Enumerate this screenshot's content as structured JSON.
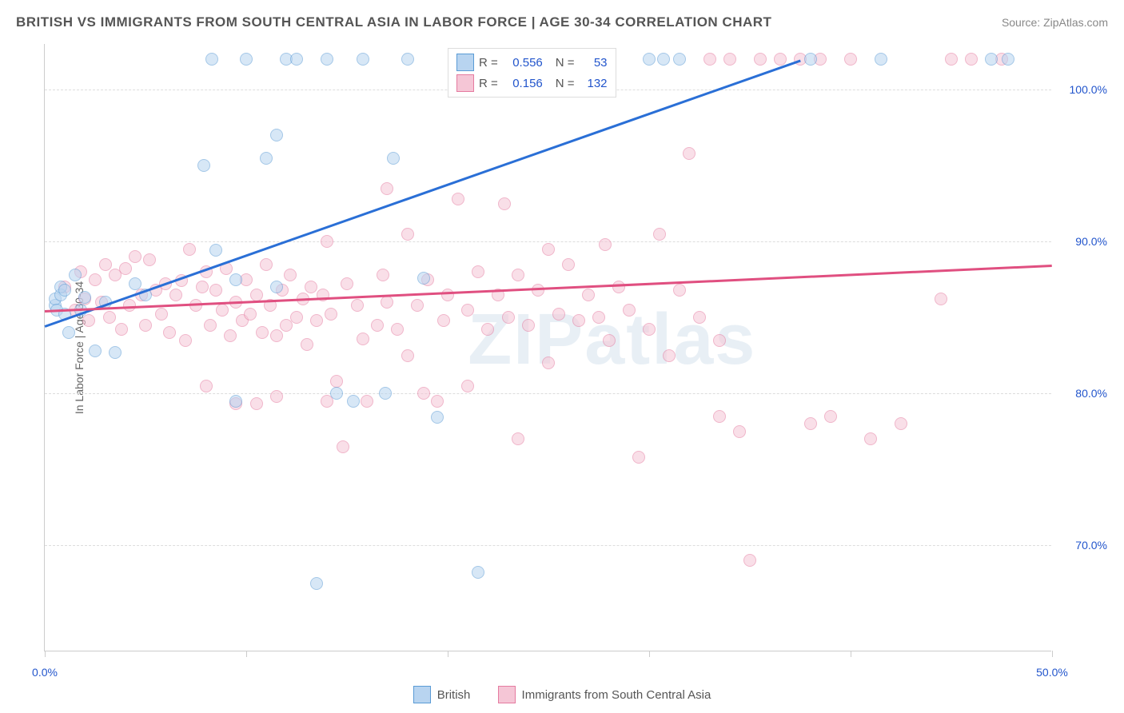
{
  "title": "BRITISH VS IMMIGRANTS FROM SOUTH CENTRAL ASIA IN LABOR FORCE | AGE 30-34 CORRELATION CHART",
  "source": "Source: ZipAtlas.com",
  "watermark": "ZIPatlas",
  "y_axis_label": "In Labor Force | Age 30-34",
  "chart": {
    "type": "scatter",
    "xlim": [
      0,
      50
    ],
    "ylim": [
      63,
      103
    ],
    "x_ticks": [
      0,
      10,
      20,
      30,
      40,
      50
    ],
    "x_tick_labels": [
      "0.0%",
      "",
      "",
      "",
      "",
      "50.0%"
    ],
    "y_ticks": [
      70,
      80,
      90,
      100
    ],
    "y_tick_labels": [
      "70.0%",
      "80.0%",
      "90.0%",
      "100.0%"
    ],
    "x_label_color": "#2255cc",
    "y_label_color": "#2255cc",
    "grid_color": "#dddddd",
    "background_color": "#ffffff",
    "point_radius": 8,
    "point_opacity": 0.55,
    "series": [
      {
        "name": "British",
        "fill": "#b8d4f0",
        "stroke": "#5a9bd5",
        "line_color": "#2a6fd6",
        "R": "0.556",
        "N": "53",
        "trend": {
          "x1": 0,
          "y1": 84.5,
          "x2": 37.5,
          "y2": 102
        },
        "points": [
          [
            0.5,
            85.8
          ],
          [
            0.5,
            86.2
          ],
          [
            0.6,
            85.5
          ],
          [
            0.8,
            86.5
          ],
          [
            0.8,
            87.0
          ],
          [
            1.0,
            85.2
          ],
          [
            1.0,
            86.8
          ],
          [
            1.2,
            84.0
          ],
          [
            1.5,
            87.8
          ],
          [
            1.8,
            85.5
          ],
          [
            2.0,
            86.3
          ],
          [
            2.5,
            82.8
          ],
          [
            3.0,
            86.0
          ],
          [
            3.5,
            82.7
          ],
          [
            4.5,
            87.2
          ],
          [
            5.0,
            86.5
          ],
          [
            7.9,
            95.0
          ],
          [
            8.3,
            102
          ],
          [
            8.5,
            89.4
          ],
          [
            9.5,
            87.5
          ],
          [
            9.5,
            79.5
          ],
          [
            10.0,
            102
          ],
          [
            11.0,
            95.5
          ],
          [
            11.5,
            97.0
          ],
          [
            11.5,
            87.0
          ],
          [
            12.0,
            102
          ],
          [
            12.5,
            102
          ],
          [
            13.5,
            67.5
          ],
          [
            14.0,
            102
          ],
          [
            14.5,
            80.0
          ],
          [
            15.3,
            79.5
          ],
          [
            15.8,
            102
          ],
          [
            16.9,
            80.0
          ],
          [
            17.3,
            95.5
          ],
          [
            18.0,
            102
          ],
          [
            18.8,
            87.6
          ],
          [
            19.5,
            78.4
          ],
          [
            21.5,
            68.2
          ],
          [
            21.5,
            102
          ],
          [
            23.2,
            102
          ],
          [
            24.0,
            102
          ],
          [
            25.5,
            102
          ],
          [
            26.5,
            102
          ],
          [
            27.5,
            102
          ],
          [
            30.0,
            102
          ],
          [
            30.7,
            102
          ],
          [
            31.5,
            102
          ],
          [
            38.0,
            102
          ],
          [
            41.5,
            102
          ],
          [
            47.0,
            102
          ],
          [
            47.8,
            102
          ]
        ]
      },
      {
        "name": "Immigrants from South Central Asia",
        "fill": "#f5c6d6",
        "stroke": "#e57ba0",
        "line_color": "#e04f80",
        "R": "0.156",
        "N": "132",
        "trend": {
          "x1": 0,
          "y1": 85.5,
          "x2": 50,
          "y2": 88.5
        },
        "points": [
          [
            1.0,
            87.0
          ],
          [
            1.5,
            85.5
          ],
          [
            1.8,
            88.0
          ],
          [
            2.0,
            86.2
          ],
          [
            2.2,
            84.8
          ],
          [
            2.5,
            87.5
          ],
          [
            2.8,
            86.0
          ],
          [
            3.0,
            88.5
          ],
          [
            3.2,
            85.0
          ],
          [
            3.5,
            87.8
          ],
          [
            3.8,
            84.2
          ],
          [
            4.0,
            88.2
          ],
          [
            4.2,
            85.8
          ],
          [
            4.5,
            89.0
          ],
          [
            4.8,
            86.5
          ],
          [
            5.0,
            84.5
          ],
          [
            5.2,
            88.8
          ],
          [
            5.5,
            86.8
          ],
          [
            5.8,
            85.2
          ],
          [
            6.0,
            87.2
          ],
          [
            6.2,
            84.0
          ],
          [
            6.5,
            86.5
          ],
          [
            6.8,
            87.4
          ],
          [
            7.0,
            83.5
          ],
          [
            7.2,
            89.5
          ],
          [
            7.5,
            85.8
          ],
          [
            7.8,
            87.0
          ],
          [
            8.0,
            88.0
          ],
          [
            8.0,
            80.5
          ],
          [
            8.2,
            84.5
          ],
          [
            8.5,
            86.8
          ],
          [
            8.8,
            85.5
          ],
          [
            9.0,
            88.2
          ],
          [
            9.2,
            83.8
          ],
          [
            9.5,
            86.0
          ],
          [
            9.5,
            79.3
          ],
          [
            9.8,
            84.8
          ],
          [
            10.0,
            87.5
          ],
          [
            10.2,
            85.2
          ],
          [
            10.5,
            86.5
          ],
          [
            10.5,
            79.3
          ],
          [
            10.8,
            84.0
          ],
          [
            11.0,
            88.5
          ],
          [
            11.2,
            85.8
          ],
          [
            11.5,
            83.8
          ],
          [
            11.5,
            79.8
          ],
          [
            11.8,
            86.8
          ],
          [
            12.0,
            84.5
          ],
          [
            12.2,
            87.8
          ],
          [
            12.5,
            85.0
          ],
          [
            12.8,
            86.2
          ],
          [
            13.0,
            83.2
          ],
          [
            13.2,
            87.0
          ],
          [
            13.5,
            84.8
          ],
          [
            13.8,
            86.5
          ],
          [
            14.0,
            90.0
          ],
          [
            14.0,
            79.5
          ],
          [
            14.2,
            85.2
          ],
          [
            14.5,
            80.8
          ],
          [
            14.8,
            76.5
          ],
          [
            15.0,
            87.2
          ],
          [
            15.5,
            85.8
          ],
          [
            15.8,
            83.6
          ],
          [
            16.0,
            79.5
          ],
          [
            16.5,
            84.5
          ],
          [
            16.8,
            87.8
          ],
          [
            17.0,
            93.5
          ],
          [
            17.0,
            86.0
          ],
          [
            17.5,
            84.2
          ],
          [
            18.0,
            90.5
          ],
          [
            18.0,
            82.5
          ],
          [
            18.5,
            85.8
          ],
          [
            18.8,
            80.0
          ],
          [
            19.0,
            87.5
          ],
          [
            19.5,
            79.5
          ],
          [
            19.8,
            84.8
          ],
          [
            20.0,
            86.5
          ],
          [
            20.5,
            92.8
          ],
          [
            21.0,
            85.5
          ],
          [
            21.0,
            80.5
          ],
          [
            21.5,
            88.0
          ],
          [
            22.0,
            84.2
          ],
          [
            22.5,
            86.5
          ],
          [
            22.8,
            92.5
          ],
          [
            23.0,
            85.0
          ],
          [
            23.5,
            87.8
          ],
          [
            23.5,
            77.0
          ],
          [
            24.0,
            84.5
          ],
          [
            24.5,
            86.8
          ],
          [
            25.0,
            89.5
          ],
          [
            25.0,
            82.0
          ],
          [
            25.5,
            85.2
          ],
          [
            26.0,
            88.5
          ],
          [
            26.5,
            84.8
          ],
          [
            27.0,
            86.5
          ],
          [
            27.5,
            85.0
          ],
          [
            27.8,
            89.8
          ],
          [
            28.0,
            83.5
          ],
          [
            28.5,
            87.0
          ],
          [
            29.0,
            85.5
          ],
          [
            29.5,
            75.8
          ],
          [
            30.0,
            84.2
          ],
          [
            30.5,
            90.5
          ],
          [
            31.0,
            82.5
          ],
          [
            31.5,
            86.8
          ],
          [
            32.0,
            95.8
          ],
          [
            32.5,
            85.0
          ],
          [
            33.0,
            102
          ],
          [
            33.5,
            83.5
          ],
          [
            33.5,
            78.5
          ],
          [
            34.0,
            102
          ],
          [
            34.5,
            77.5
          ],
          [
            35.0,
            69.0
          ],
          [
            35.5,
            102
          ],
          [
            36.5,
            102
          ],
          [
            37.5,
            102
          ],
          [
            38.0,
            78.0
          ],
          [
            38.5,
            102
          ],
          [
            39.0,
            78.5
          ],
          [
            40.0,
            102
          ],
          [
            41.0,
            77.0
          ],
          [
            42.5,
            78.0
          ],
          [
            44.5,
            86.2
          ],
          [
            45.0,
            102
          ],
          [
            46.0,
            102
          ],
          [
            47.5,
            102
          ]
        ]
      }
    ]
  },
  "legend_stats": {
    "r_label": "R =",
    "n_label": "N ="
  },
  "bottom_legend": [
    "British",
    "Immigrants from South Central Asia"
  ]
}
